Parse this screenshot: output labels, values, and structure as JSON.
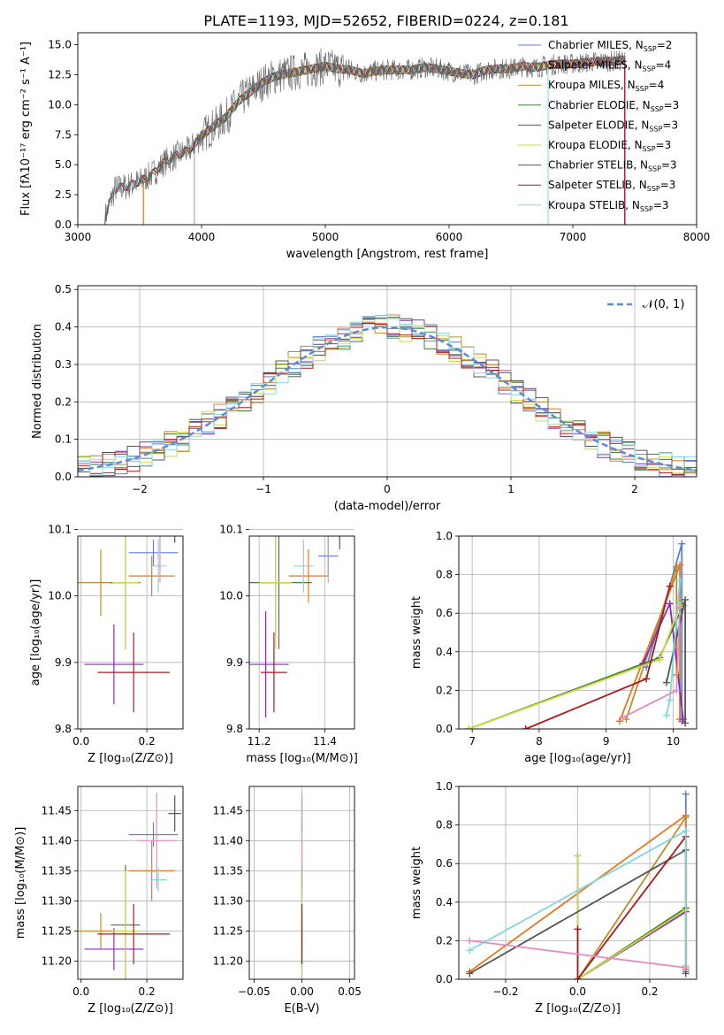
{
  "title": "PLATE=1193, MJD=52652, FIBERID=0224, z=0.181",
  "colors": [
    "#5b7fd6",
    "#e8761c",
    "#c08a2a",
    "#3f7f3f",
    "#8a2ab8",
    "#cddc39",
    "#555555",
    "#b01818",
    "#7fd8e0"
  ],
  "charts": [
    {
      "id": "spectrum",
      "type": "line",
      "xlabel": "wavelength [Angstrom, rest frame]",
      "ylabel": "Flux [fλ10⁻¹⁷ erg cm⁻² s⁻¹ A⁻¹]",
      "xlim": [
        3000,
        8000
      ],
      "ylim": [
        0,
        16
      ],
      "xticks": [
        "3000",
        "4000",
        "5000",
        "6000",
        "7000",
        "8000"
      ],
      "yticks": [
        "0.0",
        "2.5",
        "5.0",
        "7.5",
        "10.0",
        "12.5",
        "15.0"
      ],
      "legend_position": "top-right",
      "legend": [
        "Chabrier MILES, N_SSP=2",
        "Salpeter MILES, N_SSP=4",
        "Kroupa MILES, N_SSP=4",
        "Chabrier ELODIE, N_SSP=3",
        "Salpeter ELODIE, N_SSP=3",
        "Kroupa ELODIE, N_SSP=3",
        "Chabrier STELIB, N_SSP=3",
        "Salpeter STELIB, N_SSP=3",
        "Kroupa STELIB, N_SSP=3"
      ],
      "model_start": [
        3220,
        3530,
        3530,
        3940,
        3940,
        3940,
        3220,
        3220,
        3220
      ],
      "model_end": [
        6800,
        7420,
        7420,
        7420,
        7420,
        6800,
        7420,
        7420,
        6800
      ],
      "x": [
        3200,
        3300,
        3400,
        3500,
        3600,
        3700,
        3800,
        3900,
        4000,
        4100,
        4200,
        4300,
        4400,
        4500,
        4600,
        4700,
        4800,
        4900,
        5000,
        5100,
        5200,
        5300,
        5400,
        5500,
        5600,
        5700,
        5800,
        5900,
        6000,
        6100,
        6200,
        6300,
        6400,
        6500,
        6600,
        6700,
        6800,
        6900,
        7000,
        7100,
        7200,
        7300,
        7400,
        7500,
        7600,
        7700,
        7800,
        7900,
        8000
      ],
      "y": [
        0,
        3.0,
        3.2,
        3.6,
        4.2,
        5.2,
        5.8,
        6.2,
        7.4,
        8.2,
        9.0,
        10.3,
        11.1,
        11.9,
        12.4,
        12.6,
        12.8,
        13.0,
        13.2,
        13.0,
        12.9,
        12.6,
        12.8,
        12.9,
        12.9,
        12.9,
        13.1,
        13.0,
        12.8,
        12.6,
        12.5,
        12.9,
        13.0,
        13.0,
        13.2,
        13.1,
        13.3,
        13.4,
        13.4,
        13.5,
        13.6,
        13.6,
        13.7,
        13.6,
        13.6,
        13.6,
        13.7,
        13.8,
        13.8
      ]
    },
    {
      "id": "residuals",
      "type": "line",
      "xlabel": "(data-model)/error",
      "ylabel": "Normed distribution",
      "xlim": [
        -2.5,
        2.5
      ],
      "ylim": [
        0,
        0.51
      ],
      "xticks": [
        "−2",
        "−1",
        "0",
        "1",
        "2"
      ],
      "yticks": [
        "0.0",
        "0.1",
        "0.2",
        "0.3",
        "0.4",
        "0.5"
      ],
      "legend": [
        "𝒩(0, 1)"
      ],
      "legend_position": "top-right",
      "gaussian": {
        "mean": 0,
        "sigma": 1
      },
      "hist_bins": [
        -2.5,
        2.5,
        50
      ]
    },
    {
      "id": "age-vs-Z",
      "type": "scatter",
      "xlabel": "Z [log₁₀(Z/Z⊙)]",
      "ylabel": "age  [log₁₀(age/yr)]",
      "xlim": [
        -0.01,
        0.31
      ],
      "ylim": [
        9.8,
        10.09
      ],
      "xticks": [
        "0.0",
        "0.2"
      ],
      "yticks": [
        "9.8",
        "9.9",
        "10.0",
        "10.1"
      ],
      "points": [
        {
          "x": 0.22,
          "y": 10.065,
          "xerr": 0.075,
          "yerr": 0.02
        },
        {
          "x": 0.215,
          "y": 10.03,
          "xerr": 0.07,
          "yerr": 0.03
        },
        {
          "x": 0.06,
          "y": 10.02,
          "xerr": 0.07,
          "yerr": 0.05
        },
        {
          "x": 0.135,
          "y": 10.02,
          "xerr": 0.045,
          "yerr": 0.1
        },
        {
          "x": 0.1,
          "y": 9.897,
          "xerr": 0.09,
          "yerr": 0.06
        },
        {
          "x": 0.135,
          "y": 10.02,
          "xerr": 0.04,
          "yerr": 0.1
        },
        {
          "x": 0.285,
          "y": 10.11,
          "xerr": 0.02,
          "yerr": 0.03
        },
        {
          "x": 0.16,
          "y": 9.885,
          "xerr": 0.11,
          "yerr": 0.06
        },
        {
          "x": 0.235,
          "y": 10.045,
          "xerr": 0.025,
          "yerr": 0.04
        }
      ],
      "extra_points": [
        {
          "x": 0.24,
          "y": 10.1,
          "xerr": 0.06,
          "yerr": 0.08,
          "color": "#e88cc4"
        }
      ]
    },
    {
      "id": "age-vs-mass",
      "type": "scatter",
      "xlabel": "mass [log₁₀(M/M⊙)]",
      "ylabel": "",
      "xlim": [
        11.17,
        11.49
      ],
      "ylim": [
        9.8,
        10.09
      ],
      "xticks": [
        "11.2",
        "11.4"
      ],
      "yticks": [
        "9.8",
        "9.9",
        "10.0",
        "10.1"
      ],
      "points": [
        {
          "x": 11.41,
          "y": 10.06,
          "xerr": 0.03,
          "yerr": 0.03
        },
        {
          "x": 11.35,
          "y": 10.03,
          "xerr": 0.06,
          "yerr": 0.04
        },
        {
          "x": 11.25,
          "y": 10.02,
          "xerr": 0.05,
          "yerr": 0.08
        },
        {
          "x": 11.26,
          "y": 10.02,
          "xerr": 0.1,
          "yerr": 0.1
        },
        {
          "x": 11.22,
          "y": 9.897,
          "xerr": 0.07,
          "yerr": 0.08
        },
        {
          "x": 11.25,
          "y": 10.02,
          "xerr": 0.05,
          "yerr": 0.1
        },
        {
          "x": 11.445,
          "y": 10.11,
          "xerr": 0.03,
          "yerr": 0.04
        },
        {
          "x": 11.245,
          "y": 9.885,
          "xerr": 0.04,
          "yerr": 0.06
        },
        {
          "x": 11.335,
          "y": 10.045,
          "xerr": 0.03,
          "yerr": 0.04
        }
      ],
      "extra_points": [
        {
          "x": 11.41,
          "y": 10.1,
          "xerr": 0.07,
          "yerr": 0.08,
          "color": "#e88cc4"
        }
      ]
    },
    {
      "id": "massweight-vs-age",
      "type": "line",
      "xlabel": "age  [log₁₀(age/yr)]",
      "ylabel": "mass weight",
      "xlim": [
        6.8,
        10.35
      ],
      "ylim": [
        0,
        1.0
      ],
      "xticks": [
        "7",
        "8",
        "9",
        "10"
      ],
      "yticks": [
        "0.0",
        "0.2",
        "0.4",
        "0.6",
        "0.8",
        "1.0"
      ],
      "series": [
        {
          "x": [
            9.6,
            10.13,
            10.13
          ],
          "y": [
            0.32,
            0.96,
            0.04
          ]
        },
        {
          "x": [
            9.2,
            10.1,
            10.1
          ],
          "y": [
            0.04,
            0.85,
            0.05
          ]
        },
        {
          "x": [
            9.3,
            10.05,
            10.05
          ],
          "y": [
            0.05,
            0.84,
            0.28
          ]
        },
        {
          "x": [
            6.95,
            9.8,
            10.15
          ],
          "y": [
            0.0,
            0.37,
            0.64
          ]
        },
        {
          "x": [
            9.55,
            9.95,
            10.15
          ],
          "y": [
            0.34,
            0.65,
            0.05
          ]
        },
        {
          "x": [
            6.95,
            9.8,
            10.1
          ],
          "y": [
            0.0,
            0.36,
            0.64
          ]
        },
        {
          "x": [
            9.9,
            10.18,
            10.18
          ],
          "y": [
            0.24,
            0.67,
            0.03
          ]
        },
        {
          "x": [
            7.8,
            9.6,
            9.95
          ],
          "y": [
            0.0,
            0.26,
            0.74
          ]
        },
        {
          "x": [
            9.9,
            9.95,
            10.1
          ],
          "y": [
            0.07,
            0.15,
            0.77
          ]
        }
      ],
      "extra_series": [
        {
          "x": [
            9.25,
            10.05,
            10.1
          ],
          "y": [
            0.06,
            0.2,
            0.63
          ],
          "color": "#e88cc4"
        }
      ]
    },
    {
      "id": "mass-vs-Z",
      "type": "scatter",
      "xlabel": "Z [log₁₀(Z/Z⊙)]",
      "ylabel": "mass [log₁₀(M/M⊙)]",
      "xlim": [
        -0.01,
        0.31
      ],
      "ylim": [
        11.17,
        11.49
      ],
      "xticks": [
        "0.0",
        "0.2"
      ],
      "yticks": [
        "11.20",
        "11.25",
        "11.30",
        "11.35",
        "11.40",
        "11.45"
      ],
      "points": [
        {
          "x": 0.22,
          "y": 11.41,
          "xerr": 0.075,
          "yerr": 0.02
        },
        {
          "x": 0.215,
          "y": 11.35,
          "xerr": 0.07,
          "yerr": 0.05
        },
        {
          "x": 0.06,
          "y": 11.25,
          "xerr": 0.07,
          "yerr": 0.03
        },
        {
          "x": 0.135,
          "y": 11.26,
          "xerr": 0.045,
          "yerr": 0.1
        },
        {
          "x": 0.1,
          "y": 11.22,
          "xerr": 0.09,
          "yerr": 0.035
        },
        {
          "x": 0.135,
          "y": 11.25,
          "xerr": 0.04,
          "yerr": 0.1
        },
        {
          "x": 0.285,
          "y": 11.445,
          "xerr": 0.02,
          "yerr": 0.03
        },
        {
          "x": 0.16,
          "y": 11.245,
          "xerr": 0.11,
          "yerr": 0.05
        },
        {
          "x": 0.235,
          "y": 11.335,
          "xerr": 0.025,
          "yerr": 0.02
        }
      ],
      "extra_points": [
        {
          "x": 0.23,
          "y": 11.4,
          "xerr": 0.06,
          "yerr": 0.08,
          "color": "#e88cc4"
        }
      ]
    },
    {
      "id": "mass-vs-EBV",
      "type": "scatter",
      "xlabel": "E(B-V)",
      "ylabel": "",
      "xlim": [
        -0.055,
        0.055
      ],
      "ylim": [
        11.17,
        11.49
      ],
      "xticks": [
        "−0.05",
        "0.00",
        "0.05"
      ],
      "yticks": [
        "11.20",
        "11.25",
        "11.30",
        "11.35",
        "11.40",
        "11.45"
      ],
      "points": [
        {
          "x": 0,
          "y": 11.41,
          "xerr": 0,
          "yerr": 0.02
        },
        {
          "x": 0,
          "y": 11.35,
          "xerr": 0,
          "yerr": 0.05
        },
        {
          "x": 0,
          "y": 11.25,
          "xerr": 0,
          "yerr": 0.03
        },
        {
          "x": 0,
          "y": 11.26,
          "xerr": 0,
          "yerr": 0.1
        },
        {
          "x": 0,
          "y": 11.22,
          "xerr": 0,
          "yerr": 0.035
        },
        {
          "x": 0,
          "y": 11.25,
          "xerr": 0,
          "yerr": 0.1
        },
        {
          "x": 0,
          "y": 11.445,
          "xerr": 0,
          "yerr": 0.03
        },
        {
          "x": 0,
          "y": 11.245,
          "xerr": 0,
          "yerr": 0.05
        },
        {
          "x": 0,
          "y": 11.335,
          "xerr": 0,
          "yerr": 0.02
        }
      ],
      "extra_points": [
        {
          "x": 0,
          "y": 11.4,
          "xerr": 0,
          "yerr": 0.08,
          "color": "#e88cc4"
        }
      ]
    },
    {
      "id": "massweight-vs-Z",
      "type": "line",
      "xlabel": "Z [log₁₀(Z/Z⊙)]",
      "ylabel": "mass weight",
      "xlim": [
        -0.33,
        0.33
      ],
      "ylim": [
        0,
        1.0
      ],
      "xticks": [
        "−0.2",
        "0.0",
        "0.2"
      ],
      "yticks": [
        "0.0",
        "0.2",
        "0.4",
        "0.6",
        "0.8",
        "1.0"
      ],
      "series": [
        {
          "x": [
            0.3,
            0.3
          ],
          "y": [
            0.96,
            0.04
          ]
        },
        {
          "x": [
            -0.3,
            0.3,
            0.3
          ],
          "y": [
            0.04,
            0.85,
            0.05
          ]
        },
        {
          "x": [
            0.0,
            0.3
          ],
          "y": [
            0.0,
            0.84
          ]
        },
        {
          "x": [
            0.0,
            0.3
          ],
          "y": [
            0.0,
            0.37
          ]
        },
        {
          "x": [
            0.0,
            0.0,
            0.3
          ],
          "y": [
            0.64,
            0.0,
            0.35
          ]
        },
        {
          "x": [
            0.0,
            0.0,
            0.3
          ],
          "y": [
            0.64,
            0.0,
            0.36
          ]
        },
        {
          "x": [
            -0.3,
            0.3,
            0.3
          ],
          "y": [
            0.03,
            0.67,
            0.03
          ]
        },
        {
          "x": [
            0.0,
            0.0,
            0.3
          ],
          "y": [
            0.26,
            0.0,
            0.74
          ]
        },
        {
          "x": [
            -0.3,
            0.3,
            0.3
          ],
          "y": [
            0.15,
            0.77,
            0.07
          ]
        }
      ],
      "extra_series": [
        {
          "x": [
            -0.3,
            0.3
          ],
          "y": [
            0.2,
            0.06
          ],
          "color": "#e88cc4"
        }
      ]
    }
  ]
}
